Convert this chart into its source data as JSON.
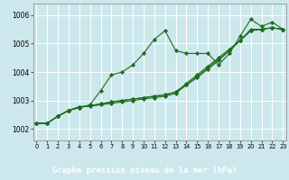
{
  "xlabel": "Graphe pression niveau de la mer (hPa)",
  "bg_color": "#cce8ec",
  "label_bg": "#2d6a2d",
  "grid_color": "#ffffff",
  "line_color": "#1f6b1f",
  "marker_color": "#1f6b1f",
  "x_ticks": [
    0,
    1,
    2,
    3,
    4,
    5,
    6,
    7,
    8,
    9,
    10,
    11,
    12,
    13,
    14,
    15,
    16,
    17,
    18,
    19,
    20,
    21,
    22,
    23
  ],
  "y_ticks": [
    1002,
    1003,
    1004,
    1005,
    1006
  ],
  "ylim": [
    1001.6,
    1006.4
  ],
  "xlim": [
    -0.3,
    23.3
  ],
  "series": [
    [
      1002.2,
      1002.2,
      1002.45,
      1002.65,
      1002.75,
      1002.85,
      1003.35,
      1003.9,
      1004.0,
      1004.25,
      1004.65,
      1005.15,
      1005.45,
      1004.75,
      1004.65,
      1004.65,
      1004.65,
      1004.25,
      1004.65,
      1005.25,
      1005.85,
      1005.6,
      1005.75,
      1005.5
    ],
    [
      1002.2,
      1002.2,
      1002.45,
      1002.65,
      1002.75,
      1002.82,
      1002.88,
      1002.95,
      1003.0,
      1003.05,
      1003.1,
      1003.15,
      1003.2,
      1003.3,
      1003.55,
      1003.8,
      1004.1,
      1004.4,
      1004.75,
      1005.1,
      1005.45,
      1005.5,
      1005.55,
      1005.5
    ],
    [
      1002.2,
      1002.2,
      1002.45,
      1002.65,
      1002.78,
      1002.82,
      1002.88,
      1002.95,
      1003.0,
      1003.05,
      1003.1,
      1003.15,
      1003.2,
      1003.3,
      1003.6,
      1003.9,
      1004.2,
      1004.5,
      1004.8,
      1005.1,
      1005.5,
      1005.5,
      1005.55,
      1005.5
    ],
    [
      1002.2,
      1002.2,
      1002.45,
      1002.65,
      1002.78,
      1002.8,
      1002.85,
      1002.9,
      1002.95,
      1003.0,
      1003.05,
      1003.1,
      1003.15,
      1003.25,
      1003.55,
      1003.85,
      1004.15,
      1004.45,
      1004.75,
      1005.1,
      1005.45,
      1005.5,
      1005.55,
      1005.5
    ]
  ]
}
